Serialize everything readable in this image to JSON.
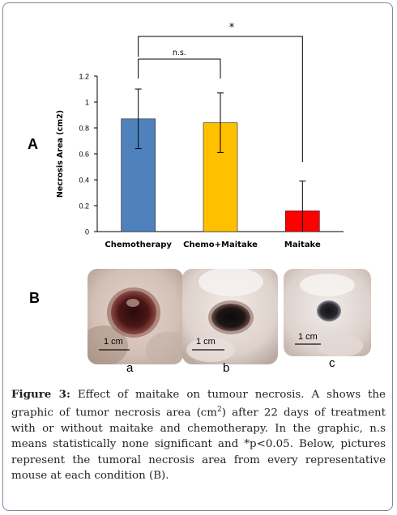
{
  "panel_a_label": "A",
  "panel_b_label": "B",
  "chart_data": {
    "type": "bar",
    "categories": [
      "Chemotherapy",
      "Chemo+Maitake",
      "Maitake"
    ],
    "values": [
      0.87,
      0.84,
      0.16
    ],
    "error": [
      0.23,
      0.23,
      0.23
    ],
    "colors": [
      "#4f81bd",
      "#ffc000",
      "#ff0000"
    ],
    "ylabel": "Necrosis Area (cm2)",
    "xlabel": "",
    "ylim": [
      0,
      1.2
    ],
    "yticks": [
      "0",
      "0.2",
      "0.4",
      "0.6",
      "0.8",
      "1",
      "1.2"
    ],
    "grid": false,
    "annotations": [
      {
        "from": "Chemotherapy",
        "to": "Chemo+Maitake",
        "text": "n.s."
      },
      {
        "from": "Chemotherapy",
        "to": "Maitake",
        "text": "*"
      }
    ]
  },
  "photos": [
    {
      "scale": "1 cm",
      "letter": "a"
    },
    {
      "scale": "1 cm",
      "letter": "b"
    },
    {
      "scale": "1 cm",
      "letter": "c"
    }
  ],
  "caption": {
    "label": "Figure 3:",
    "text_before_sup": " Effect of maitake on tumour necrosis. A shows the graphic of tumor necrosis area (cm",
    "sup": "2",
    "text_after_sup": ") after 22 days of treatment with or without maitake and chemotherapy. In the graphic, n.s means statistically none significant and *p<0.05. Below, pictures represent the tumoral necrosis area from every representative mouse at each condition (B)."
  }
}
